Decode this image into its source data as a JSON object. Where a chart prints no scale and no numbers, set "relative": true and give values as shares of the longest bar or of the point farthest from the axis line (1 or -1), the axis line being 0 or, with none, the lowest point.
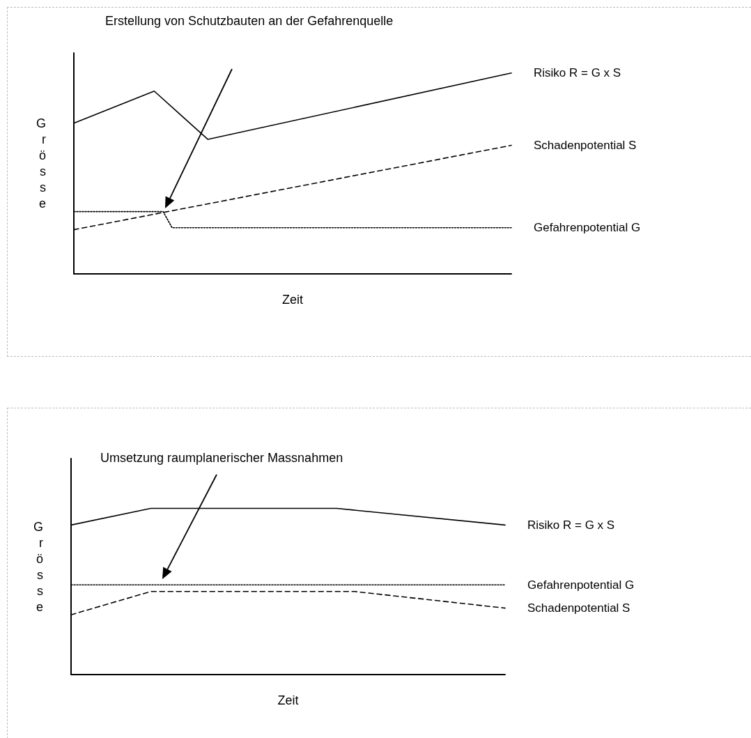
{
  "chart_data": [
    {
      "type": "line",
      "relative": true,
      "xlabel": "Zeit",
      "ylabel": "Grösse",
      "annotations": [
        "Erstellung von Schutzbauten an der Gefahrenquelle"
      ],
      "legend": false,
      "grid": false,
      "marker": "none",
      "categories": [
        null,
        null,
        null,
        null,
        null,
        null,
        null,
        null,
        null,
        null,
        null,
        null,
        null,
        null,
        null,
        null,
        null,
        null,
        null,
        null,
        null,
        null,
        null,
        null,
        null,
        null,
        null,
        null,
        null,
        null,
        null,
        null,
        null,
        null,
        null,
        null,
        null,
        null,
        null,
        null,
        null,
        null,
        null,
        null,
        null,
        null,
        null,
        null,
        null,
        null
      ],
      "series": [
        {
          "name": "Risiko R = G x S",
          "color": "#000000",
          "line_style": "solid",
          "values": [
            0.75,
            null,
            null,
            null,
            null,
            null,
            null,
            null,
            null,
            0.91,
            null,
            null,
            null,
            null,
            null,
            0.67,
            null,
            null,
            null,
            null,
            null,
            null,
            null,
            null,
            null,
            null,
            null,
            null,
            null,
            null,
            null,
            null,
            null,
            null,
            null,
            null,
            null,
            null,
            null,
            null,
            null,
            null,
            null,
            null,
            null,
            null,
            null,
            null,
            null,
            1
          ]
        },
        {
          "name": "Schadenpotential S",
          "color": "#000000",
          "line_style": "dashed",
          "values": [
            0.22,
            null,
            null,
            null,
            null,
            null,
            null,
            null,
            null,
            null,
            null,
            null,
            null,
            null,
            null,
            null,
            null,
            null,
            null,
            null,
            null,
            null,
            null,
            null,
            null,
            null,
            null,
            null,
            null,
            null,
            null,
            null,
            null,
            null,
            null,
            null,
            null,
            null,
            null,
            null,
            null,
            null,
            null,
            null,
            null,
            null,
            null,
            null,
            null,
            0.64
          ]
        },
        {
          "name": "Gefahrenpotential G",
          "color": "#000000",
          "line_style": "dotted",
          "values": [
            0.31,
            null,
            null,
            null,
            null,
            null,
            null,
            null,
            null,
            null,
            0.31,
            0.23,
            null,
            null,
            null,
            null,
            null,
            null,
            null,
            null,
            null,
            null,
            null,
            null,
            null,
            null,
            null,
            null,
            null,
            null,
            null,
            null,
            null,
            null,
            null,
            null,
            null,
            null,
            null,
            null,
            null,
            null,
            null,
            null,
            null,
            null,
            null,
            null,
            null,
            0.23
          ]
        }
      ]
    },
    {
      "type": "line",
      "relative": true,
      "xlabel": "Zeit",
      "ylabel": "Grösse",
      "annotations": [
        "Umsetzung raumplanerischer Massnahmen"
      ],
      "legend": false,
      "grid": false,
      "marker": "none",
      "categories": [
        null,
        null,
        null,
        null,
        null,
        null,
        null,
        null,
        null,
        null,
        null,
        null,
        null,
        null,
        null,
        null,
        null,
        null,
        null,
        null,
        null,
        null,
        null,
        null,
        null,
        null,
        null,
        null,
        null,
        null,
        null,
        null,
        null,
        null,
        null,
        null,
        null,
        null,
        null,
        null,
        null,
        null,
        null,
        null,
        null,
        null,
        null,
        null,
        null,
        null
      ],
      "series": [
        {
          "name": "Risiko R = G x S",
          "color": "#000000",
          "line_style": "solid",
          "values": [
            0.9,
            null,
            null,
            null,
            null,
            null,
            null,
            null,
            null,
            1,
            null,
            null,
            null,
            null,
            null,
            null,
            null,
            null,
            null,
            null,
            null,
            null,
            null,
            null,
            null,
            null,
            null,
            null,
            null,
            null,
            1,
            null,
            null,
            null,
            null,
            null,
            null,
            null,
            null,
            null,
            null,
            null,
            null,
            null,
            null,
            null,
            null,
            null,
            null,
            0.9
          ]
        },
        {
          "name": "Gefahrenpotential G",
          "color": "#000000",
          "line_style": "dotted",
          "values": [
            0.54,
            null,
            null,
            null,
            null,
            null,
            null,
            null,
            null,
            null,
            null,
            null,
            null,
            null,
            null,
            null,
            null,
            null,
            null,
            null,
            null,
            null,
            null,
            null,
            null,
            null,
            null,
            null,
            null,
            null,
            null,
            null,
            null,
            null,
            null,
            null,
            null,
            null,
            null,
            null,
            null,
            null,
            null,
            null,
            null,
            null,
            null,
            null,
            null,
            0.54
          ]
        },
        {
          "name": "Schadenpotential S",
          "color": "#000000",
          "line_style": "dashed",
          "values": [
            0.36,
            null,
            null,
            null,
            null,
            null,
            null,
            null,
            null,
            0.5,
            null,
            null,
            null,
            null,
            null,
            null,
            null,
            null,
            null,
            null,
            null,
            null,
            null,
            null,
            null,
            null,
            null,
            null,
            null,
            null,
            null,
            null,
            0.5,
            null,
            null,
            null,
            null,
            null,
            null,
            null,
            null,
            null,
            null,
            null,
            null,
            null,
            null,
            null,
            null,
            0.4
          ]
        }
      ]
    }
  ]
}
